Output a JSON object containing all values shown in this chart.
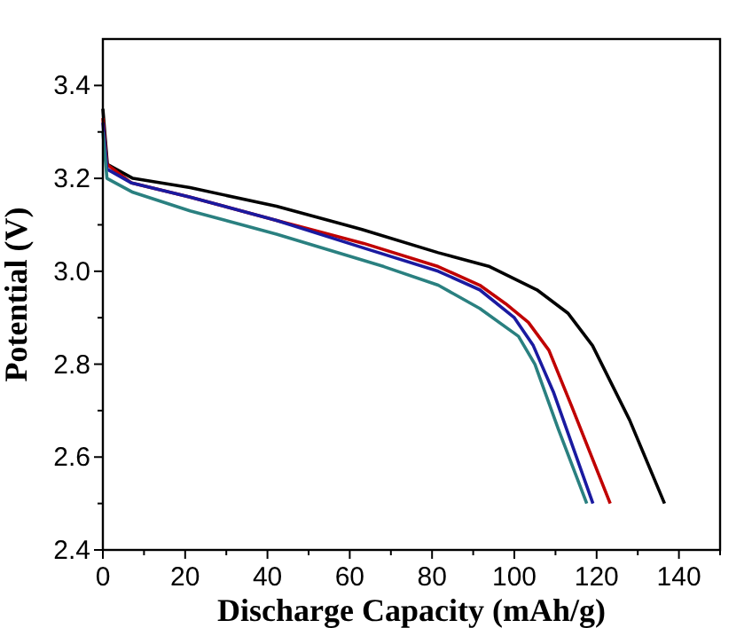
{
  "chart_data": {
    "type": "line",
    "xlabel": "Discharge Capacity (mAh/g)",
    "ylabel": "Potential (V)",
    "xlim": [
      0,
      150
    ],
    "ylim": [
      2.4,
      3.5
    ],
    "xticks": [
      0,
      {
        "value": 10,
        "label": null
      },
      20,
      {
        "value": 30,
        "label": null
      },
      40,
      {
        "value": 50,
        "label": null
      },
      60,
      {
        "value": 70,
        "label": null
      },
      80,
      {
        "value": 90,
        "label": null
      },
      100,
      {
        "value": 110,
        "label": null
      },
      120,
      {
        "value": 130,
        "label": null
      },
      140,
      {
        "value": 150,
        "label": null
      }
    ],
    "yticks": [
      {
        "value": 2.4,
        "label": "2.4"
      },
      {
        "value": 2.5,
        "label": null
      },
      {
        "value": 2.6,
        "label": "2.6"
      },
      {
        "value": 2.7,
        "label": null
      },
      {
        "value": 2.8,
        "label": "2.8"
      },
      {
        "value": 2.9,
        "label": null
      },
      {
        "value": 3.0,
        "label": "3.0"
      },
      {
        "value": 3.1,
        "label": null
      },
      {
        "value": 3.2,
        "label": "3.2"
      },
      {
        "value": 3.3,
        "label": null
      },
      {
        "value": 3.4,
        "label": "3.4"
      }
    ],
    "grid": false,
    "marker": "none",
    "line_style": "solid",
    "series": [
      {
        "color": "#000000",
        "x": [
          0,
          1.1,
          7.3,
          21.2,
          42.2,
          63,
          81.5,
          94,
          105.5,
          113,
          119,
          128,
          136.5
        ],
        "values": [
          3.35,
          3.23,
          3.2,
          3.18,
          3.14,
          3.09,
          3.04,
          3.01,
          2.96,
          2.91,
          2.84,
          2.68,
          2.5
        ]
      },
      {
        "color": "#c00000",
        "x": [
          0,
          1,
          7,
          21,
          42,
          63.4,
          81.5,
          91.6,
          97.9,
          103.4,
          108.4,
          113.9,
          123.3
        ],
        "values": [
          3.33,
          3.23,
          3.19,
          3.16,
          3.11,
          3.06,
          3.01,
          2.97,
          2.93,
          2.89,
          2.83,
          2.71,
          2.5
        ]
      },
      {
        "color": "#1a1aa0",
        "x": [
          0,
          1,
          7,
          21,
          42,
          63.4,
          81.5,
          91.6,
          100,
          104.6,
          109.5,
          119.1
        ],
        "values": [
          3.32,
          3.22,
          3.19,
          3.16,
          3.11,
          3.05,
          3.0,
          2.96,
          2.9,
          2.84,
          2.74,
          2.5
        ]
      },
      {
        "color": "#2a8080",
        "x": [
          0,
          1,
          7.3,
          21.2,
          42.2,
          68.3,
          81.5,
          91.6,
          101,
          105,
          110.7,
          117.6
        ],
        "values": [
          3.3,
          3.2,
          3.17,
          3.13,
          3.08,
          3.01,
          2.97,
          2.92,
          2.86,
          2.8,
          2.66,
          2.5
        ]
      }
    ]
  }
}
